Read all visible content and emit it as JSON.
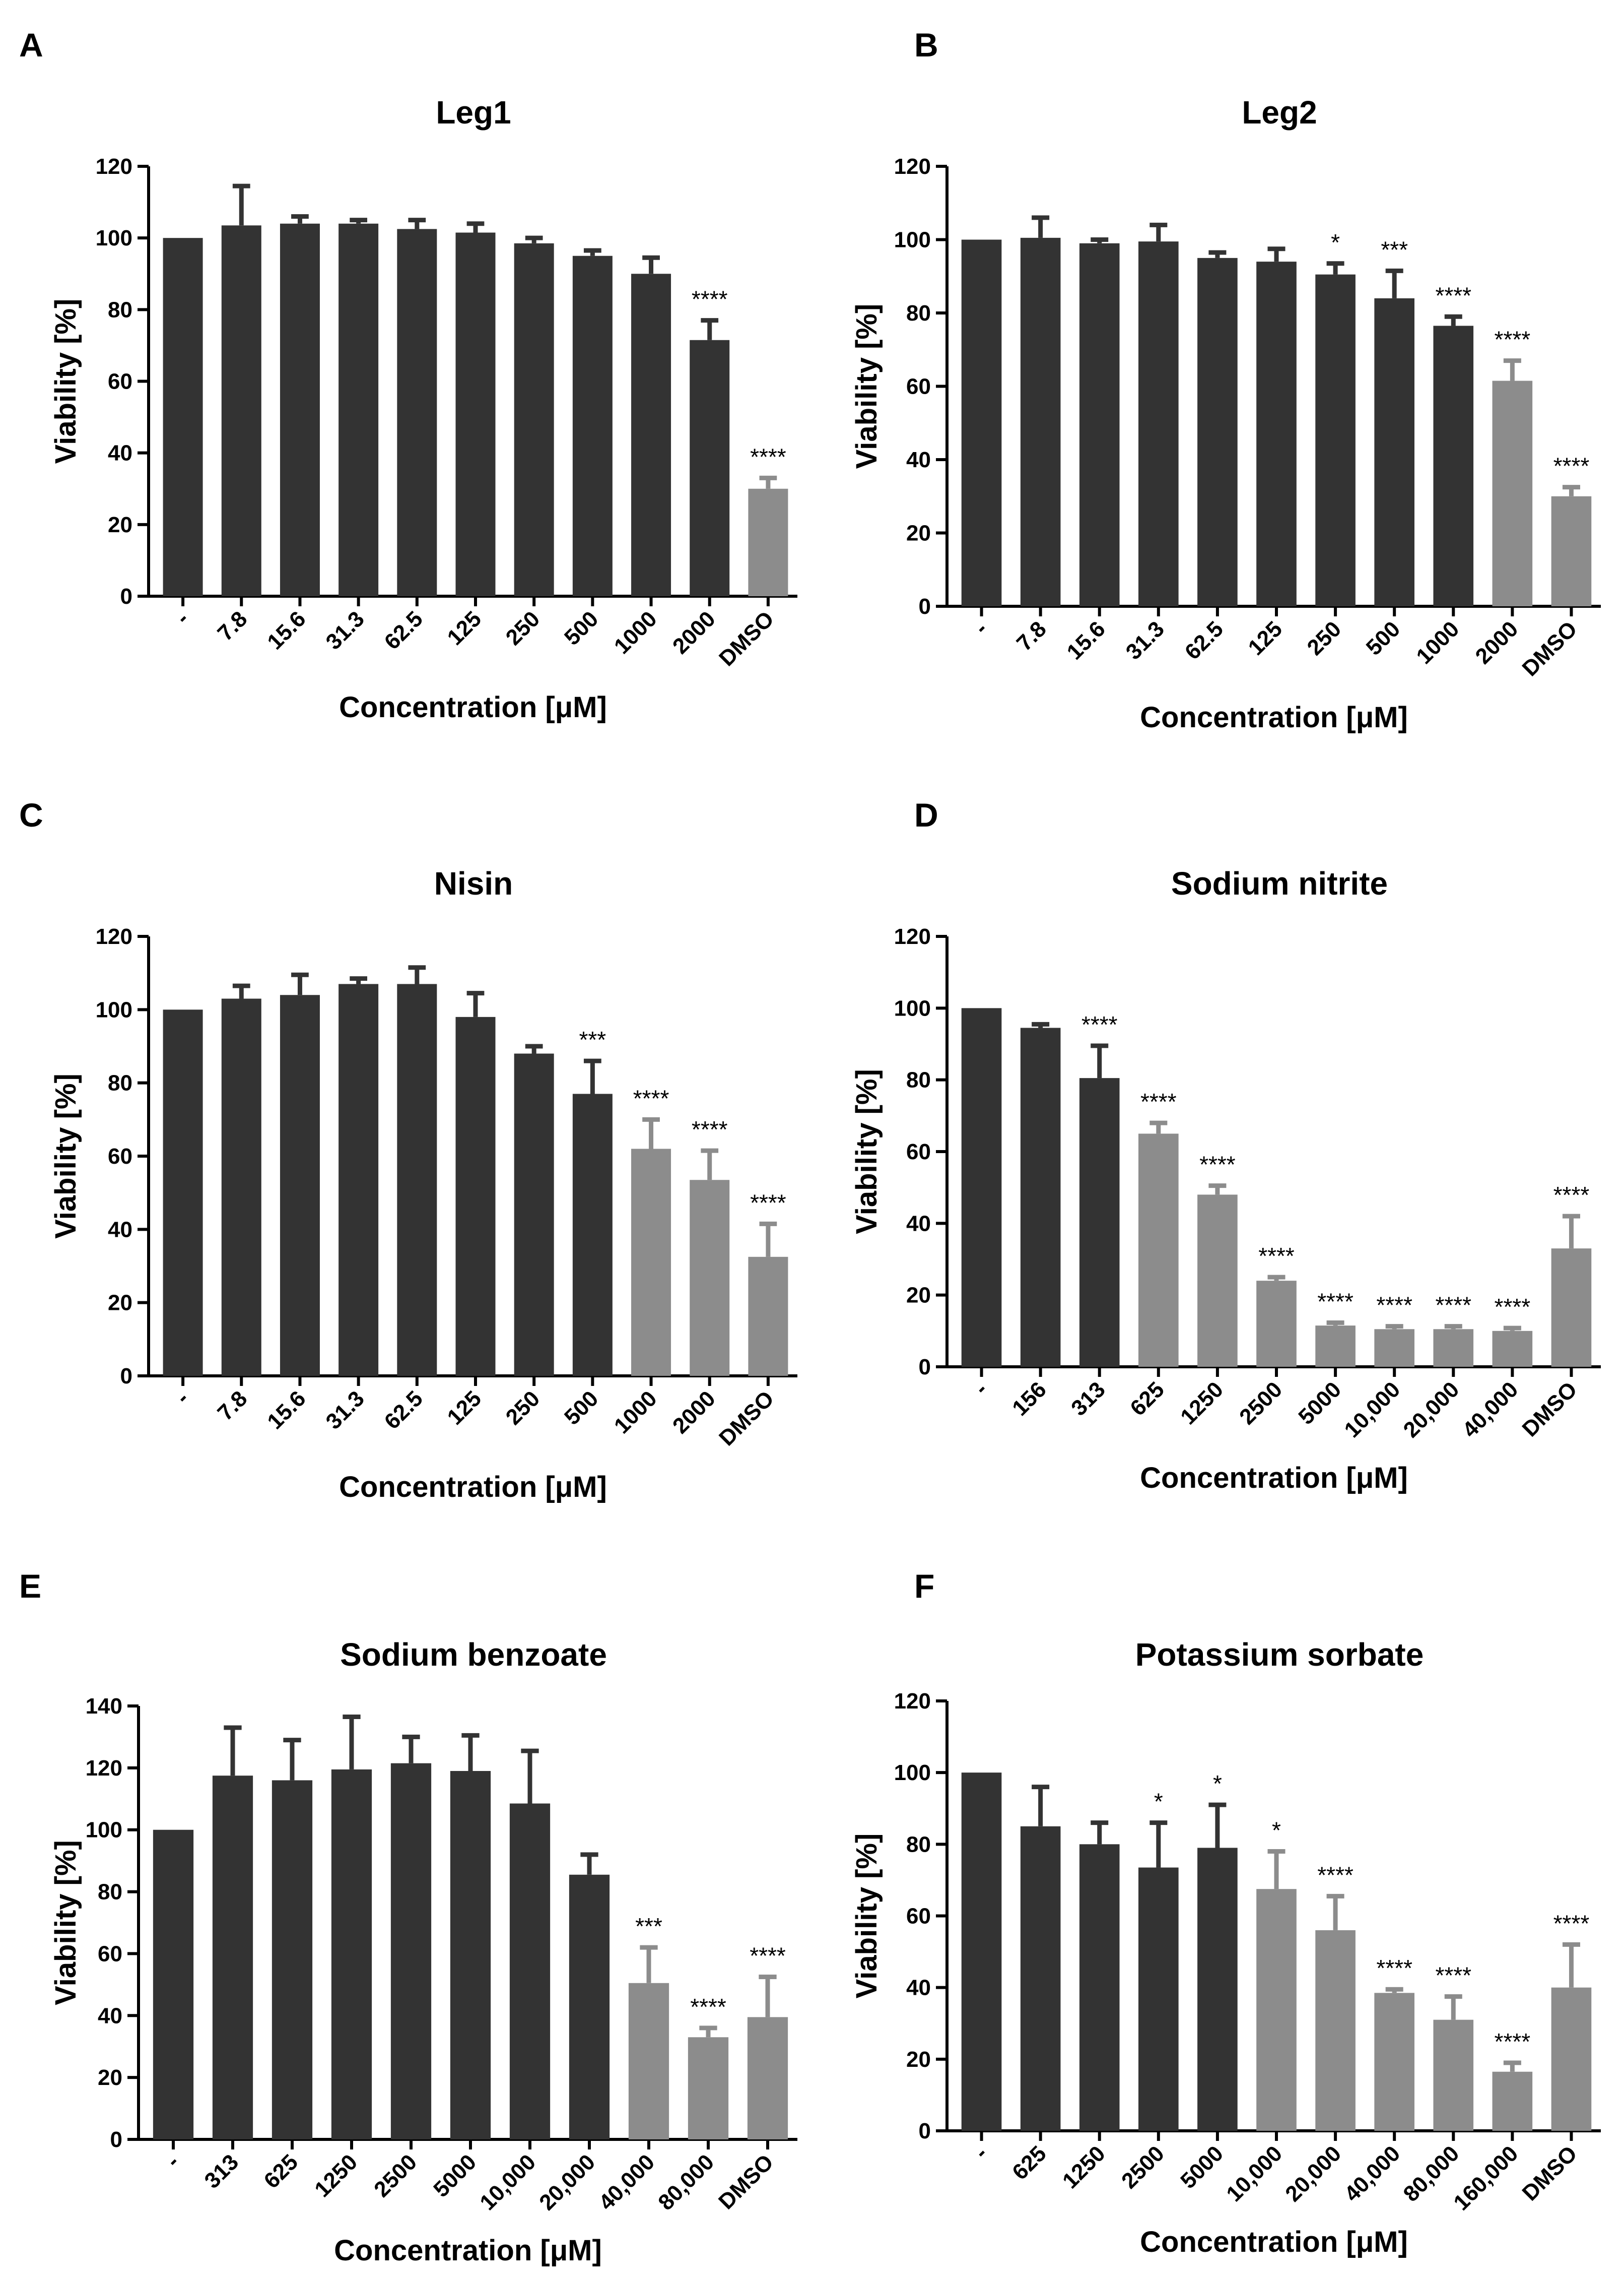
{
  "colors": {
    "dark": "#333333",
    "light": "#8c8c8c",
    "axis": "#000000"
  },
  "axis_labels": {
    "xlabel": "Concentration [μM]",
    "ylabel": "Viability [%]"
  },
  "chart_data": [
    {
      "panel": "A",
      "type": "bar",
      "title": "Leg1",
      "ylabel": "Viability [%]",
      "xlabel": "Concentration [μM]",
      "ylim": [
        0,
        120
      ],
      "yticks": [
        0,
        20,
        40,
        60,
        80,
        100,
        120
      ],
      "categories": [
        "-",
        "7.8",
        "15.6",
        "31.3",
        "62.5",
        "125",
        "250",
        "500",
        "1000",
        "2000",
        "DMSO"
      ],
      "values": [
        100,
        103.5,
        104,
        104,
        102.5,
        101.5,
        98.5,
        95,
        90,
        71.5,
        30
      ],
      "errors": [
        0,
        11,
        2,
        1,
        2.5,
        2.5,
        1.5,
        1.5,
        4.5,
        5.5,
        3
      ],
      "shade": [
        "dark",
        "dark",
        "dark",
        "dark",
        "dark",
        "dark",
        "dark",
        "dark",
        "dark",
        "dark",
        "light"
      ],
      "significance": [
        "",
        "",
        "",
        "",
        "",
        "",
        "",
        "",
        "",
        "****",
        "****"
      ]
    },
    {
      "panel": "B",
      "type": "bar",
      "title": "Leg2",
      "ylabel": "Viability [%]",
      "xlabel": "Concentration [μM]",
      "ylim": [
        0,
        120
      ],
      "yticks": [
        0,
        20,
        40,
        60,
        80,
        100,
        120
      ],
      "categories": [
        "-",
        "7.8",
        "15.6",
        "31.3",
        "62.5",
        "125",
        "250",
        "500",
        "1000",
        "2000",
        "DMSO"
      ],
      "values": [
        100,
        100.5,
        99,
        99.5,
        95,
        94,
        90.5,
        84,
        76.5,
        61.5,
        30
      ],
      "errors": [
        0,
        5.5,
        1,
        4.5,
        1.5,
        3.5,
        3,
        7.5,
        2.5,
        5.5,
        2.5
      ],
      "shade": [
        "dark",
        "dark",
        "dark",
        "dark",
        "dark",
        "dark",
        "dark",
        "dark",
        "dark",
        "light",
        "light"
      ],
      "significance": [
        "",
        "",
        "",
        "",
        "",
        "",
        "*",
        "***",
        "****",
        "****",
        "****"
      ]
    },
    {
      "panel": "C",
      "type": "bar",
      "title": "Nisin",
      "ylabel": "Viability [%]",
      "xlabel": "Concentration [μM]",
      "ylim": [
        0,
        120
      ],
      "yticks": [
        0,
        20,
        40,
        60,
        80,
        100,
        120
      ],
      "categories": [
        "-",
        "7.8",
        "15.6",
        "31.3",
        "62.5",
        "125",
        "250",
        "500",
        "1000",
        "2000",
        "DMSO"
      ],
      "values": [
        100,
        103,
        104,
        107,
        107,
        98,
        88,
        77,
        62,
        53.5,
        32.5
      ],
      "errors": [
        0,
        3.5,
        5.5,
        1.5,
        4.5,
        6.5,
        2,
        9,
        8,
        8,
        9
      ],
      "shade": [
        "dark",
        "dark",
        "dark",
        "dark",
        "dark",
        "dark",
        "dark",
        "dark",
        "light",
        "light",
        "light"
      ],
      "significance": [
        "",
        "",
        "",
        "",
        "",
        "",
        "",
        "***",
        "****",
        "****",
        "****"
      ]
    },
    {
      "panel": "D",
      "type": "bar",
      "title": "Sodium nitrite",
      "ylabel": "Viability [%]",
      "xlabel": "Concentration [μM]",
      "ylim": [
        0,
        120
      ],
      "yticks": [
        0,
        20,
        40,
        60,
        80,
        100,
        120
      ],
      "categories": [
        "-",
        "156",
        "313",
        "625",
        "1250",
        "2500",
        "5000",
        "10,000",
        "20,000",
        "40,000",
        "DMSO"
      ],
      "values": [
        100,
        94.5,
        80.5,
        65,
        48,
        24,
        11.5,
        10.5,
        10.5,
        10,
        33
      ],
      "errors": [
        0,
        1,
        9,
        3,
        2.5,
        1,
        0.8,
        0.8,
        0.8,
        0.8,
        9
      ],
      "shade": [
        "dark",
        "dark",
        "dark",
        "light",
        "light",
        "light",
        "light",
        "light",
        "light",
        "light",
        "light"
      ],
      "significance": [
        "",
        "",
        "****",
        "****",
        "****",
        "****",
        "****",
        "****",
        "****",
        "****",
        "****"
      ]
    },
    {
      "panel": "E",
      "type": "bar",
      "title": "Sodium benzoate",
      "ylabel": "Viability [%]",
      "xlabel": "Concentration [μM]",
      "ylim": [
        0,
        140
      ],
      "yticks": [
        0,
        20,
        40,
        60,
        80,
        100,
        120,
        140
      ],
      "categories": [
        "-",
        "313",
        "625",
        "1250",
        "2500",
        "5000",
        "10,000",
        "20,000",
        "40,000",
        "80,000",
        "DMSO"
      ],
      "values": [
        100,
        117.5,
        116,
        119.5,
        121.5,
        119,
        108.5,
        85.5,
        50.5,
        33,
        39.5
      ],
      "errors": [
        0,
        15.5,
        13,
        17,
        8.5,
        11.5,
        17,
        6.5,
        11.5,
        3,
        13
      ],
      "shade": [
        "dark",
        "dark",
        "dark",
        "dark",
        "dark",
        "dark",
        "dark",
        "dark",
        "light",
        "light",
        "light"
      ],
      "significance": [
        "",
        "",
        "",
        "",
        "",
        "",
        "",
        "",
        "***",
        "****",
        "****"
      ]
    },
    {
      "panel": "F",
      "type": "bar",
      "title": "Potassium sorbate",
      "ylabel": "Viability [%]",
      "xlabel": "Concentration [μM]",
      "ylim": [
        0,
        120
      ],
      "yticks": [
        0,
        20,
        40,
        60,
        80,
        100,
        120
      ],
      "categories": [
        "-",
        "625",
        "1250",
        "2500",
        "5000",
        "10,000",
        "20,000",
        "40,000",
        "80,000",
        "160,000",
        "DMSO"
      ],
      "values": [
        100,
        85,
        80,
        73.5,
        79,
        67.5,
        56,
        38.5,
        31,
        16.5,
        40
      ],
      "errors": [
        0,
        11,
        6,
        12.5,
        12,
        10.5,
        9.5,
        1,
        6.5,
        2.5,
        12
      ],
      "shade": [
        "dark",
        "dark",
        "dark",
        "dark",
        "dark",
        "light",
        "light",
        "light",
        "light",
        "light",
        "light"
      ],
      "significance": [
        "",
        "",
        "",
        "*",
        "*",
        "*",
        "****",
        "****",
        "****",
        "****",
        "****"
      ]
    }
  ]
}
